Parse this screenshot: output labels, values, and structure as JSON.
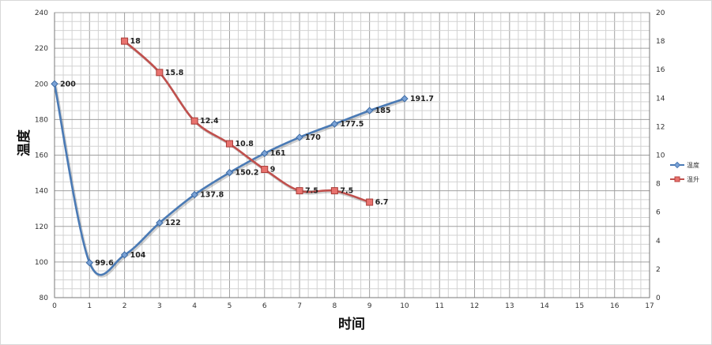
{
  "chart_data": {
    "type": "line",
    "xlabel": "时间",
    "ylabel": "温度",
    "xlim": [
      0,
      17
    ],
    "ylim": [
      80,
      240
    ],
    "y2lim": [
      0,
      20
    ],
    "x_ticks": [
      0,
      1,
      2,
      3,
      4,
      5,
      6,
      7,
      8,
      9,
      10,
      11,
      12,
      13,
      14,
      15,
      16,
      17
    ],
    "y_ticks": [
      80,
      100,
      120,
      140,
      160,
      180,
      200,
      220,
      240
    ],
    "y2_ticks": [
      0,
      2,
      4,
      6,
      8,
      10,
      12,
      14,
      16,
      18,
      20
    ],
    "grid": true,
    "legend_position": "right",
    "series": [
      {
        "name": "温度",
        "axis": "left",
        "color": "#4a7ab5",
        "marker": "diamond",
        "smooth": true,
        "x": [
          0,
          1,
          2,
          3,
          4,
          5,
          6,
          7,
          8,
          9,
          10
        ],
        "values": [
          200,
          99.6,
          104,
          122,
          137.8,
          150.2,
          161,
          170,
          177.5,
          185,
          191.7
        ],
        "labels": [
          "200",
          "99.6",
          "104",
          "122",
          "137.8",
          "150.2",
          "161",
          "170",
          "177.5",
          "185",
          "191.7"
        ]
      },
      {
        "name": "温升",
        "axis": "right",
        "color": "#c0504d",
        "marker": "square",
        "smooth": true,
        "x": [
          2,
          3,
          4,
          5,
          6,
          7,
          8,
          9
        ],
        "values": [
          18,
          15.8,
          12.4,
          10.8,
          9,
          7.5,
          7.5,
          6.7
        ],
        "labels": [
          "18",
          "15.8",
          "12.4",
          "10.8",
          "9",
          "7.5",
          "7.5",
          "6.7"
        ]
      }
    ]
  }
}
